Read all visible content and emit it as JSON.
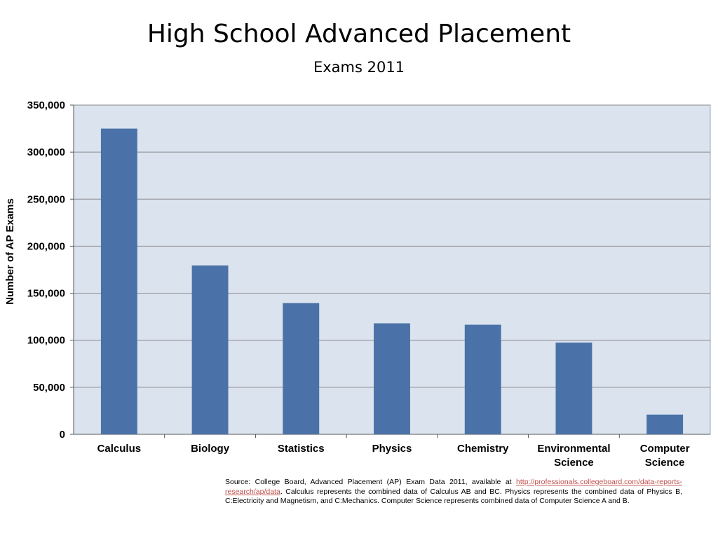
{
  "slide": {
    "title": "High School Advanced Placement",
    "subtitle": "Exams 2011"
  },
  "colors": {
    "bar": "#4a72a8",
    "plot_background": "#dbe3ef",
    "gridline": "#8a8a8a",
    "link": "#c0504d"
  },
  "chart_data": {
    "type": "bar",
    "title": "",
    "xlabel": "",
    "ylabel": "Number of AP Exams",
    "categories": [
      [
        "Calculus"
      ],
      [
        "Biology"
      ],
      [
        "Statistics"
      ],
      [
        "Physics"
      ],
      [
        "Chemistry"
      ],
      [
        "Environmental",
        "Science"
      ],
      [
        "Computer",
        "Science"
      ]
    ],
    "values": [
      325000,
      179500,
      139500,
      118000,
      116500,
      97500,
      21000
    ],
    "ylim": [
      0,
      350000
    ],
    "yticks": [
      0,
      50000,
      100000,
      150000,
      200000,
      250000,
      300000,
      350000
    ],
    "ytick_labels": [
      "0",
      "50,000",
      "100,000",
      "150,000",
      "200,000",
      "250,000",
      "300,000",
      "350,000"
    ],
    "grid": true,
    "legend": "none"
  },
  "source": {
    "prefix": "Source: College Board, Advanced Placement (AP) Exam Data 2011, available at ",
    "link_text": "http://professionals.collegeboard.com/data-reports-research/ap/data",
    "suffix": ". Calculus represents the combined data of Calculus AB and BC. Physics represents the combined data of Physics B,  C:Electricity and Magnetism, and C:Mechanics. Computer Science represents combined data of Computer Science A and B."
  }
}
